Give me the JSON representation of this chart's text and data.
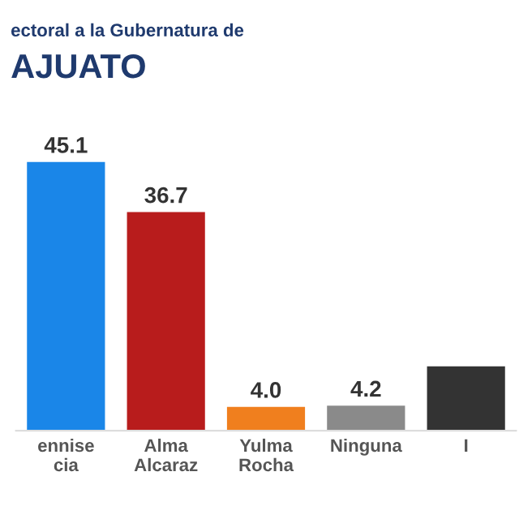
{
  "chart_data": {
    "type": "bar",
    "title": "ectoral a la Gubernatura de",
    "subtitle": "AJUATO",
    "categories": [
      "ennise\ncia",
      "Alma\nAlcaraz",
      "Yulma\nRocha",
      "Ninguna",
      "I"
    ],
    "values": [
      45.1,
      36.7,
      4.0,
      4.2,
      10.8
    ],
    "colors": [
      "#1a86e8",
      "#b81c1c",
      "#f07f1e",
      "#8a8a8a",
      "#333333"
    ],
    "value_labels": [
      "45.1",
      "36.7",
      "4.0",
      "4.2",
      null
    ],
    "grid": false,
    "legend": false
  }
}
